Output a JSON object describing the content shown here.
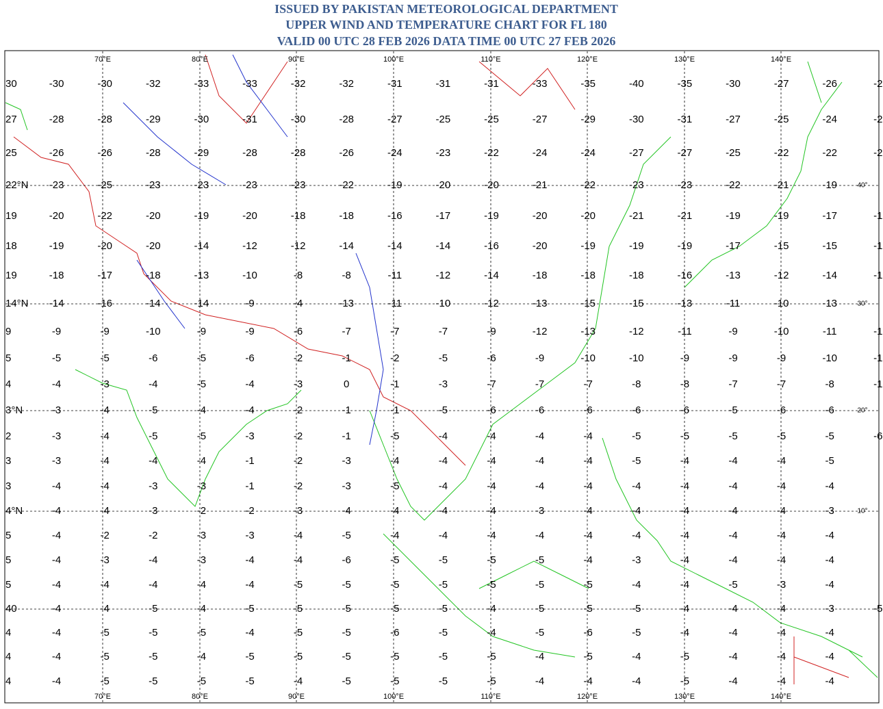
{
  "header": {
    "lines": [
      "ISSUED BY PAKISTAN METEOROLOGICAL DEPARTMENT",
      "UPPER WIND AND TEMPERATURE CHART FOR FL 180",
      "VALID 00 UTC 28 FEB 2026 DATA TIME 00 UTC 27 FEB 2026"
    ]
  },
  "map": {
    "longitude_labels": [
      "70°E",
      "80°E",
      "90°E",
      "100°E",
      "110°E",
      "120°E",
      "130°E",
      "140°E"
    ],
    "latitude_labels_right": [
      "40°",
      "30°",
      "20°",
      "10°"
    ],
    "temperatures": [
      [
        "30",
        "-30",
        "-30",
        "-32",
        "-33",
        "-33",
        "-32",
        "-32",
        "-31",
        "-31",
        "-31",
        "-33",
        "-35",
        "-40",
        "-35",
        "-30",
        "-27",
        "-26",
        "-2"
      ],
      [
        "27",
        "-28",
        "-28",
        "-29",
        "-30",
        "-31",
        "-30",
        "-28",
        "-27",
        "-25",
        "-25",
        "-27",
        "-29",
        "-30",
        "-31",
        "-27",
        "-25",
        "-24",
        "-2"
      ],
      [
        "25",
        "-26",
        "-26",
        "-28",
        "-29",
        "-28",
        "-28",
        "-26",
        "-24",
        "-23",
        "-22",
        "-24",
        "-24",
        "-27",
        "-27",
        "-25",
        "-22",
        "-22",
        "-2"
      ],
      [
        "22°N",
        "-23",
        "-25",
        "-23",
        "-23",
        "-23",
        "-23",
        "-22",
        "-19",
        "-20",
        "-20",
        "-21",
        "-22",
        "-23",
        "-23",
        "-22",
        "-21",
        "-19",
        null
      ],
      [
        "19",
        "-20",
        "-22",
        "-20",
        "-19",
        "-20",
        "-18",
        "-18",
        "-16",
        "-17",
        "-19",
        "-20",
        "-20",
        "-21",
        "-21",
        "-19",
        "-19",
        "-17",
        "-1"
      ],
      [
        "18",
        "-19",
        "-20",
        "-20",
        "-14",
        "-12",
        "-12",
        "-14",
        "-14",
        "-14",
        "-16",
        "-20",
        "-19",
        "-19",
        "-19",
        "-17",
        "-15",
        "-15",
        "-1"
      ],
      [
        "19",
        "-18",
        "-17",
        "-18",
        "-13",
        "-10",
        "-8",
        "-8",
        "-11",
        "-12",
        "-14",
        "-18",
        "-18",
        "-18",
        "-16",
        "-13",
        "-12",
        "-14",
        "-1"
      ],
      [
        "14°N",
        "-14",
        "-16",
        "-14",
        "-14",
        "-9",
        "-4",
        "-13",
        "-11",
        "-10",
        "-12",
        "-13",
        "-15",
        "-15",
        "-13",
        "-11",
        "-10",
        "-13",
        null
      ],
      [
        "9",
        "-9",
        "-9",
        "-10",
        "-9",
        "-9",
        "-6",
        "-7",
        "-7",
        "-7",
        "-9",
        "-12",
        "-13",
        "-12",
        "-11",
        "-9",
        "-10",
        "-11",
        "-1"
      ],
      [
        "5",
        "-5",
        "-5",
        "-6",
        "-5",
        "-6",
        "-2",
        "-1",
        "-2",
        "-5",
        "-6",
        "-9",
        "-10",
        "-10",
        "-9",
        "-9",
        "-9",
        "-10",
        "-1"
      ],
      [
        "4",
        "-4",
        "-3",
        "-4",
        "-5",
        "-4",
        "-3",
        "0",
        "-1",
        "-3",
        "-7",
        "-7",
        "-7",
        "-8",
        "-8",
        "-7",
        "-7",
        "-8",
        "-1"
      ],
      [
        "3°N",
        "-3",
        "-4",
        "-5",
        "-4",
        "-4",
        "-2",
        "-1",
        "-1",
        "-5",
        "-6",
        "-6",
        "-6",
        "-6",
        "-6",
        "-5",
        "-6",
        "-6",
        null
      ],
      [
        "2",
        "-3",
        "-4",
        "-5",
        "-5",
        "-3",
        "-2",
        "-1",
        "-5",
        "-4",
        "-4",
        "-4",
        "-4",
        "-5",
        "-5",
        "-5",
        "-5",
        "-5",
        "-6"
      ],
      [
        "3",
        "-3",
        "-4",
        "-4",
        "-4",
        "-1",
        "-2",
        "-3",
        "-4",
        "-4",
        "-4",
        "-4",
        "-4",
        "-5",
        "-4",
        "-4",
        "-4",
        "-5",
        null
      ],
      [
        "3",
        "-4",
        "-4",
        "-3",
        "-3",
        "-1",
        "-2",
        "-3",
        "-5",
        "-4",
        "-4",
        "-4",
        "-4",
        "-4",
        "-4",
        "-4",
        "-4",
        "-4",
        null
      ],
      [
        "4°N",
        "-4",
        "-4",
        "-3",
        "-2",
        "-2",
        "-3",
        "-4",
        "-4",
        "-4",
        "-4",
        "-3",
        "-4",
        "-4",
        "-4",
        "-4",
        "-4",
        "-3",
        null
      ],
      [
        "5",
        "-4",
        "-2",
        "-2",
        "-3",
        "-3",
        "-4",
        "-5",
        "-4",
        "-4",
        "-4",
        "-4",
        "-4",
        "-4",
        "-4",
        "-4",
        "-4",
        "-4",
        null
      ],
      [
        "5",
        "-4",
        "-3",
        "-4",
        "-3",
        "-4",
        "-4",
        "-6",
        "-5",
        "-5",
        "-5",
        "-5",
        "-4",
        "-3",
        "-4",
        "-4",
        "-4",
        "-4",
        null
      ],
      [
        "5",
        "-4",
        "-4",
        "-4",
        "-4",
        "-4",
        "-5",
        "-5",
        "-5",
        "-5",
        "-5",
        "-5",
        "-5",
        "-4",
        "-4",
        "-5",
        "-3",
        "-4",
        null
      ],
      [
        "40",
        "-4",
        "-4",
        "-5",
        "-4",
        "-5",
        "-5",
        "-5",
        "-5",
        "-5",
        "-4",
        "-5",
        "-5",
        "-5",
        "-4",
        "-4",
        "-4",
        "-3",
        "-5"
      ],
      [
        "4",
        "-4",
        "-5",
        "-5",
        "-5",
        "-4",
        "-5",
        "-5",
        "-6",
        "-5",
        "-4",
        "-5",
        "-6",
        "-5",
        "-4",
        "-4",
        "-4",
        "-4",
        null
      ],
      [
        "4",
        "-4",
        "-5",
        "-5",
        "-4",
        "-5",
        "-5",
        "-5",
        "-5",
        "-5",
        "-5",
        "-4",
        "-5",
        "-4",
        "-5",
        "-4",
        "-4",
        "-4",
        null
      ],
      [
        "4",
        "-4",
        "-5",
        "-5",
        "-5",
        "-5",
        "-4",
        "-5",
        "-5",
        "-5",
        "-5",
        "-4",
        "-4",
        "-4",
        "-5",
        "-4",
        "-4",
        "-4",
        null
      ]
    ]
  }
}
